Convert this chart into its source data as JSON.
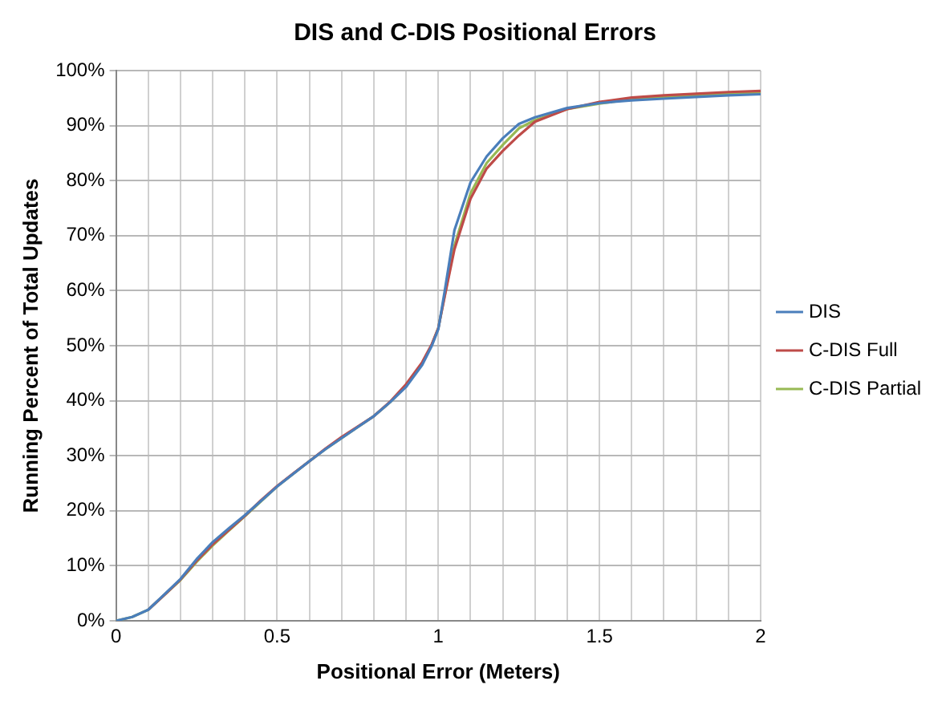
{
  "chart_data": {
    "type": "line",
    "title": "DIS and C-DIS Positional Errors",
    "xlabel": "Positional Error (Meters)",
    "ylabel": "Running Percent of Total Updates",
    "x": [
      0,
      0.05,
      0.1,
      0.15,
      0.2,
      0.25,
      0.3,
      0.35,
      0.4,
      0.45,
      0.5,
      0.55,
      0.6,
      0.65,
      0.7,
      0.75,
      0.8,
      0.85,
      0.9,
      0.95,
      0.98,
      1,
      1.02,
      1.05,
      1.1,
      1.15,
      1.2,
      1.25,
      1.3,
      1.4,
      1.5,
      1.6,
      1.7,
      1.8,
      1.9,
      2
    ],
    "series": [
      {
        "name": "DIS",
        "color": "#4a7ebb",
        "values": [
          0,
          0.7,
          2,
          4.8,
          7.6,
          11.2,
          14.3,
          16.8,
          19.2,
          21.8,
          24.4,
          26.7,
          29,
          31.2,
          33.2,
          35.2,
          37.2,
          39.7,
          42.5,
          46.5,
          50,
          53,
          60,
          71,
          79.7,
          84.4,
          87.7,
          90.3,
          91.5,
          93.2,
          94.1,
          94.6,
          94.9,
          95.2,
          95.5,
          95.7
        ]
      },
      {
        "name": "C-DIS Full",
        "color": "#be4b48",
        "values": [
          null,
          null,
          2,
          4.7,
          7.5,
          10.9,
          13.9,
          16.5,
          19.1,
          21.9,
          24.5,
          26.8,
          29,
          31.3,
          33.4,
          35.3,
          37.2,
          39.8,
          43,
          47,
          50.3,
          53.2,
          59,
          67.5,
          76.7,
          82.2,
          85.4,
          88.2,
          90.7,
          93,
          94.3,
          95.1,
          95.5,
          95.8,
          96.1,
          96.3
        ]
      },
      {
        "name": "C-DIS Partial",
        "color": "#98b954",
        "values": [
          0,
          0.7,
          2,
          4.7,
          7.4,
          10.7,
          13.7,
          16.4,
          19,
          21.7,
          24.4,
          26.7,
          29,
          31.2,
          33.2,
          35.2,
          37.2,
          39.7,
          42.7,
          46.7,
          50.2,
          53.2,
          59.2,
          68.2,
          77.7,
          83.2,
          86.5,
          89.5,
          91,
          93,
          94,
          94.8,
          95.2,
          95.5,
          95.8,
          96
        ]
      }
    ],
    "xlim": [
      0,
      2
    ],
    "xticks": [
      0,
      {
        "value": 0.1,
        "label": null
      },
      {
        "value": 0.2,
        "label": null
      },
      {
        "value": 0.3,
        "label": null
      },
      {
        "value": 0.4,
        "label": null
      },
      0.5,
      {
        "value": 0.6,
        "label": null
      },
      {
        "value": 0.7,
        "label": null
      },
      {
        "value": 0.8,
        "label": null
      },
      {
        "value": 0.9,
        "label": null
      },
      1,
      {
        "value": 1.1,
        "label": null
      },
      {
        "value": 1.2,
        "label": null
      },
      {
        "value": 1.3,
        "label": null
      },
      {
        "value": 1.4,
        "label": null
      },
      1.5,
      {
        "value": 1.6,
        "label": null
      },
      {
        "value": 1.7,
        "label": null
      },
      {
        "value": 1.8,
        "label": null
      },
      {
        "value": 1.9,
        "label": null
      },
      2
    ],
    "ylim": [
      0,
      100
    ],
    "yticks": [
      {
        "value": 0,
        "label": "0%"
      },
      {
        "value": 10,
        "label": "10%"
      },
      {
        "value": 20,
        "label": "20%"
      },
      {
        "value": 30,
        "label": "30%"
      },
      {
        "value": 40,
        "label": "40%"
      },
      {
        "value": 50,
        "label": "50%"
      },
      {
        "value": 60,
        "label": "60%"
      },
      {
        "value": 70,
        "label": "70%"
      },
      {
        "value": 80,
        "label": "80%"
      },
      {
        "value": 90,
        "label": "90%"
      },
      {
        "value": 100,
        "label": "100%"
      }
    ],
    "grid": true,
    "legend": "right",
    "marker": "none",
    "line_style": "solid"
  }
}
